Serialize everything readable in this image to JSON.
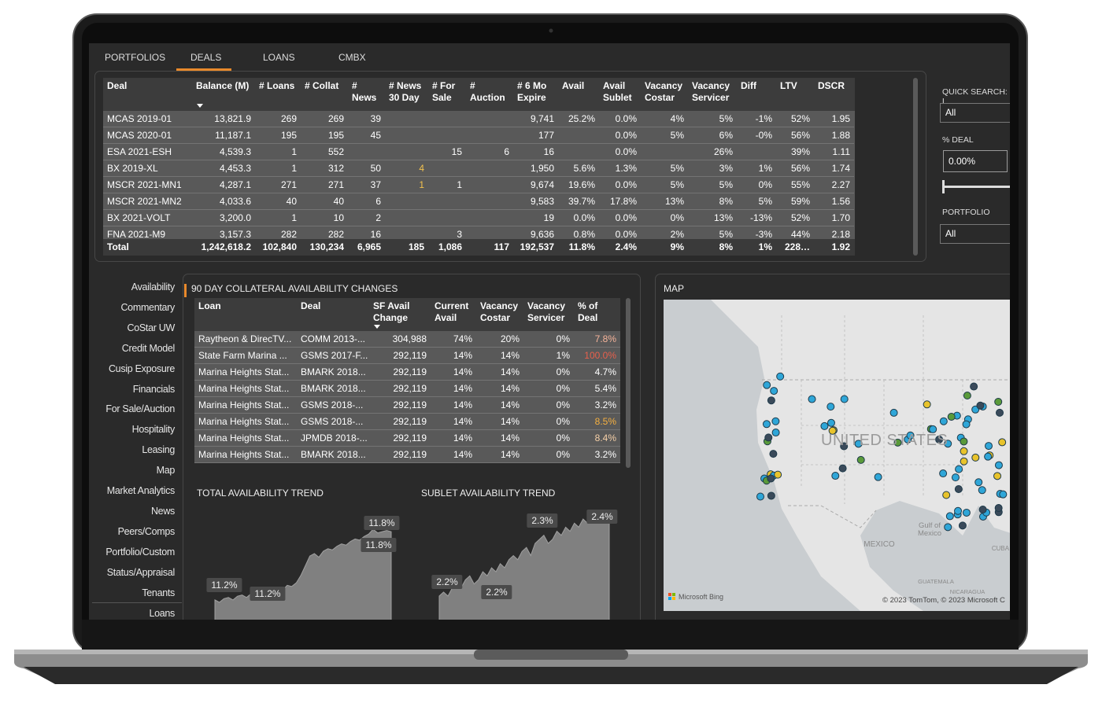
{
  "tabs": [
    "PORTFOLIOS",
    "DEALS",
    "LOANS",
    "CMBX"
  ],
  "deals_table": {
    "columns": [
      "Deal",
      "Balance (M)",
      "# Loans",
      "# Collat",
      "# News",
      "# News 30 Day",
      "# For Sale",
      "# Auction",
      "# 6 Mo Expire",
      "Avail",
      "Avail Sublet",
      "Vacancy Costar",
      "Vacancy Servicer",
      "Diff",
      "LTV",
      "DSCR"
    ],
    "rows": [
      [
        "MCAS 2019-01",
        "13,821.9",
        "269",
        "269",
        "39",
        null,
        null,
        null,
        "9,741",
        "25.2%",
        "0.0%",
        "4%",
        "5%",
        "-1%",
        "52%",
        "1.95"
      ],
      [
        "MCAS 2020-01",
        "11,187.1",
        "195",
        "195",
        "45",
        null,
        null,
        null,
        "177",
        null,
        "0.0%",
        "5%",
        "6%",
        "-0%",
        "56%",
        "1.88"
      ],
      [
        "ESA 2021-ESH",
        "4,539.3",
        "1",
        "552",
        null,
        null,
        "15",
        "6",
        "16",
        null,
        "0.0%",
        null,
        "26%",
        null,
        "39%",
        "1.11"
      ],
      [
        "BX 2019-XL",
        "4,453.3",
        "1",
        "312",
        "50",
        "4",
        null,
        null,
        "1,950",
        "5.6%",
        "1.3%",
        "5%",
        "3%",
        "1%",
        "56%",
        "1.74"
      ],
      [
        "MSCR 2021-MN1",
        "4,287.1",
        "271",
        "271",
        "37",
        "1",
        "1",
        null,
        "9,674",
        "19.6%",
        "0.0%",
        "5%",
        "5%",
        "0%",
        "55%",
        "2.27"
      ],
      [
        "MSCR 2021-MN2",
        "4,033.6",
        "40",
        "40",
        "6",
        null,
        null,
        null,
        "9,583",
        "39.7%",
        "17.8%",
        "13%",
        "8%",
        "5%",
        "59%",
        "1.56"
      ],
      [
        "BX 2021-VOLT",
        "3,200.0",
        "1",
        "10",
        "2",
        null,
        null,
        null,
        "19",
        "0.0%",
        "0.0%",
        "0%",
        "13%",
        "-13%",
        "52%",
        "1.70"
      ],
      [
        "FNA 2021-M9",
        "3,157.3",
        "282",
        "282",
        "16",
        null,
        "3",
        null,
        "9,636",
        "0.8%",
        "0.0%",
        "2%",
        "5%",
        "-3%",
        "44%",
        "2.18"
      ]
    ],
    "total": [
      "Total",
      "1,242,618.2",
      "102,840",
      "130,234",
      "6,965",
      "185",
      "1,086",
      "117",
      "192,537",
      "11.8%",
      "2.4%",
      "9%",
      "8%",
      "1%",
      "228…",
      "1.92"
    ]
  },
  "filters": {
    "quick_search_label": "QUICK SEARCH: L",
    "quick_search_value": "All",
    "pct_deal_label": "% DEAL",
    "pct_deal_value": "0.00%",
    "portfolio_label": "PORTFOLIO",
    "portfolio_value": "All"
  },
  "nav": [
    "Availability",
    "Commentary",
    "CoStar UW",
    "Credit Model",
    "Cusip Exposure",
    "Financials",
    "For Sale/Auction",
    "Hospitality",
    "Leasing",
    "Map",
    "Market Analytics",
    "News",
    "Peers/Comps",
    "Portfolio/Custom",
    "Status/Appraisal",
    "Tenants",
    "Loans"
  ],
  "collateral": {
    "title": "90 DAY COLLATERAL AVAILABILITY CHANGES",
    "columns": [
      "Loan",
      "Deal",
      "SF Avail Change",
      "Current Avail",
      "Vacancy Costar",
      "Vacancy Servicer",
      "% of Deal"
    ],
    "rows": [
      [
        "Raytheon & DirecTV...",
        "COMM 2013-...",
        "304,988",
        "74%",
        "20%",
        "0%",
        "7.8%"
      ],
      [
        "State Farm Marina ...",
        "GSMS 2017-F...",
        "292,119",
        "14%",
        "14%",
        "1%",
        "100.0%"
      ],
      [
        "Marina Heights Stat...",
        "BMARK 2018...",
        "292,119",
        "14%",
        "14%",
        "0%",
        "4.7%"
      ],
      [
        "Marina Heights Stat...",
        "BMARK 2018...",
        "292,119",
        "14%",
        "14%",
        "0%",
        "5.4%"
      ],
      [
        "Marina Heights Stat...",
        "GSMS 2018-...",
        "292,119",
        "14%",
        "14%",
        "0%",
        "3.2%"
      ],
      [
        "Marina Heights Stat...",
        "GSMS 2018-...",
        "292,119",
        "14%",
        "14%",
        "0%",
        "8.5%"
      ],
      [
        "Marina Heights Stat...",
        "JPMDB 2018-...",
        "292,119",
        "14%",
        "14%",
        "0%",
        "8.4%"
      ],
      [
        "Marina Heights Stat...",
        "BMARK 2018...",
        "292,119",
        "14%",
        "14%",
        "0%",
        "3.2%"
      ]
    ],
    "pct_colors": [
      "#f6b49a",
      "#e8604c",
      "#ffffff",
      "#ffffff",
      "#ffffff",
      "#f5b041",
      "#f6d0a8",
      "#ffffff"
    ]
  },
  "total_trend": {
    "title": "TOTAL AVAILABILITY TREND",
    "values": [
      11.22,
      11.2,
      11.23,
      11.24,
      11.22,
      11.25,
      11.26,
      11.24,
      11.27,
      11.28,
      11.26,
      11.3,
      11.29,
      11.32,
      11.31,
      11.3,
      11.34,
      11.33,
      11.36,
      11.42,
      11.5,
      11.58,
      11.6,
      11.57,
      11.62,
      11.64,
      11.63,
      11.66,
      11.68,
      11.67,
      11.7,
      11.72,
      11.71,
      11.74,
      11.76,
      11.8,
      11.77,
      11.78,
      11.79,
      11.78
    ],
    "annotations": [
      "11.8%",
      "11.8%",
      "11.2%",
      "11.2%"
    ]
  },
  "sublet_trend": {
    "title": "SUBLET AVAILABILITY TREND",
    "values": [
      2.2,
      2.21,
      2.2,
      2.22,
      2.23,
      2.22,
      2.24,
      2.25,
      2.23,
      2.24,
      2.26,
      2.25,
      2.27,
      2.26,
      2.28,
      2.27,
      2.29,
      2.3,
      2.29,
      2.31,
      2.32,
      2.3,
      2.33,
      2.34,
      2.35,
      2.33,
      2.34,
      2.36,
      2.35,
      2.37,
      2.36,
      2.38,
      2.37,
      2.39,
      2.38,
      2.39,
      2.4,
      2.39,
      2.4,
      2.4
    ],
    "annotations": [
      "2.3%",
      "2.4%",
      "2.2%",
      "2.2%"
    ]
  },
  "map": {
    "title": "MAP",
    "country_label": "UNITED STATES",
    "labels": [
      "MEXICO",
      "Gulf of Mexico",
      "CUBA",
      "GUATEMALA",
      "NICARAGUA"
    ],
    "provider": "Microsoft Bing",
    "attribution": "© 2023 TomTom, © 2023 Microsoft C"
  }
}
